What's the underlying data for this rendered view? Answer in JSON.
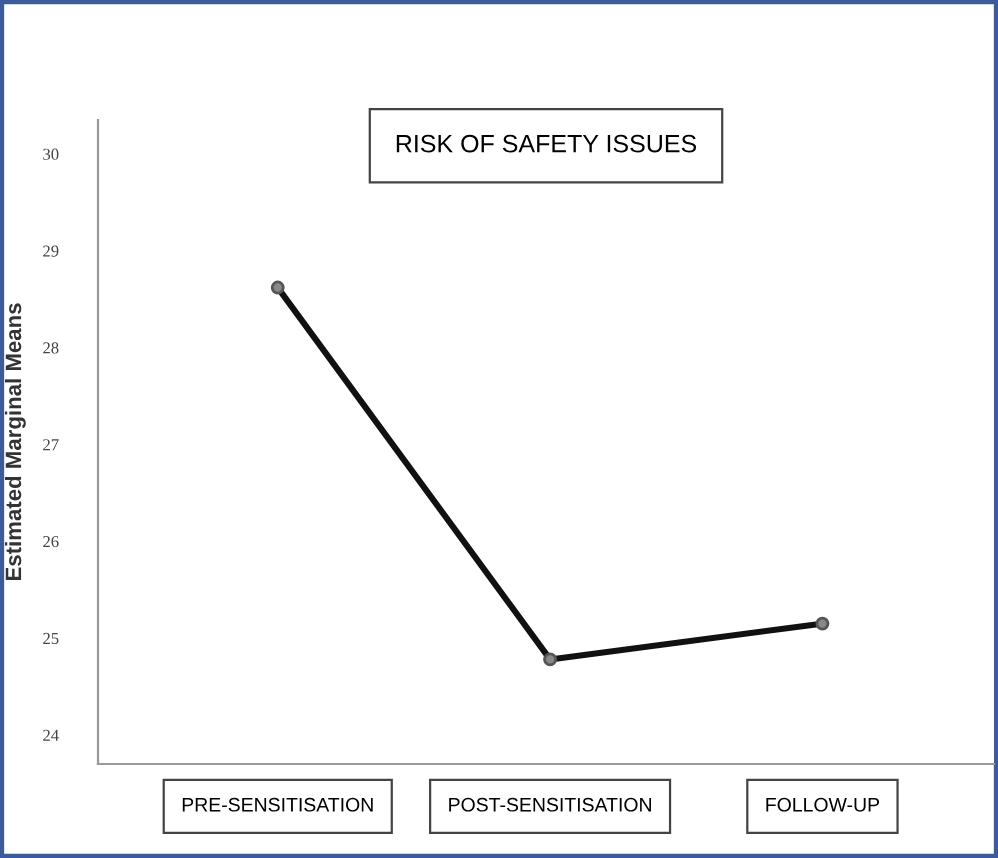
{
  "chart_data": {
    "type": "line",
    "title": "RISK OF SAFETY ISSUES",
    "ylabel": "Estimated Marginal Means",
    "categories": [
      "PRE-SENSITISATION",
      "POST-SENSITISATION",
      "FOLLOW-UP"
    ],
    "series": [
      {
        "color": "#111111",
        "values": [
          28.62,
          24.78,
          25.15
        ]
      }
    ],
    "ylim": [
      23.7,
      30.35
    ],
    "yticks": [
      24,
      25,
      26,
      27,
      28,
      29,
      30
    ],
    "grid": false,
    "marker": "circle",
    "line_style": "solid"
  }
}
